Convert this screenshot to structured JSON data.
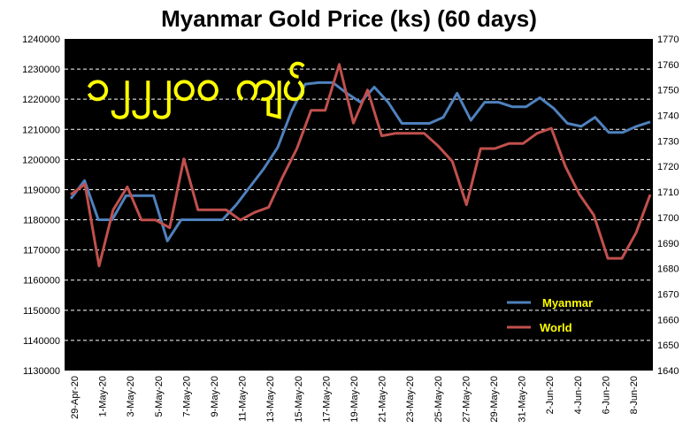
{
  "chart_data": {
    "type": "line",
    "title": "Myanmar Gold Price (ks) (60 days)",
    "annotation": "၁၂၂၂၀၀ ကျပ်",
    "colors": {
      "plot_background": "#000000",
      "grid": "#ffffff",
      "myanmar": "#4f81bd",
      "world": "#c0504d",
      "legend_text": "#ffff00",
      "annotation": "#ffff00"
    },
    "x_tick_labels": [
      "29-Apr-20",
      "1-May-20",
      "3-May-20",
      "5-May-20",
      "7-May-20",
      "9-May-20",
      "11-May-20",
      "13-May-20",
      "15-May-20",
      "17-May-20",
      "19-May-20",
      "21-May-20",
      "23-May-20",
      "25-May-20",
      "27-May-20",
      "29-May-20",
      "31-May-20",
      "2-Jun-20",
      "4-Jun-20",
      "6-Jun-20",
      "8-Jun-20"
    ],
    "y_left": {
      "min": 1130000,
      "max": 1240000,
      "step": 10000,
      "ticks": [
        "1130000",
        "1140000",
        "1150000",
        "1160000",
        "1170000",
        "1180000",
        "1190000",
        "1200000",
        "1210000",
        "1220000",
        "1230000",
        "1240000"
      ]
    },
    "y_right": {
      "min": 1640,
      "max": 1770,
      "step": 10,
      "ticks": [
        "1640",
        "1650",
        "1660",
        "1670",
        "1680",
        "1690",
        "1700",
        "1710",
        "1720",
        "1730",
        "1740",
        "1750",
        "1760",
        "1770"
      ]
    },
    "grid": true,
    "legend_position": "bottom-right",
    "series": [
      {
        "name": "Myanmar",
        "axis": "left",
        "values": [
          1187000,
          1193000,
          1180000,
          1180000,
          1188000,
          1188000,
          1188000,
          1173000,
          1180000,
          1180000,
          1180000,
          1180000,
          1185000,
          1191000,
          1197000,
          1204000,
          1216000,
          1225000,
          1225500,
          1225500,
          1222000,
          1219000,
          1224000,
          1219000,
          1212000,
          1212000,
          1212000,
          1214000,
          1222000,
          1213000,
          1219000,
          1219000,
          1217500,
          1217500,
          1220500,
          1217000,
          1212000,
          1211000,
          1214000,
          1209000,
          1209000,
          1211000,
          1212500
        ]
      },
      {
        "name": "World",
        "axis": "right",
        "values": [
          1709,
          1713,
          1681,
          1703,
          1712,
          1699,
          1699,
          1696,
          1723,
          1703,
          1703,
          1703,
          1699,
          1702,
          1704,
          1716,
          1727,
          1742,
          1742,
          1760,
          1737,
          1750,
          1732,
          1733,
          1733,
          1733,
          1728,
          1722,
          1705,
          1727,
          1727,
          1729,
          1729,
          1733,
          1735,
          1720,
          1709,
          1701,
          1684,
          1684,
          1694,
          1709
        ]
      }
    ]
  }
}
